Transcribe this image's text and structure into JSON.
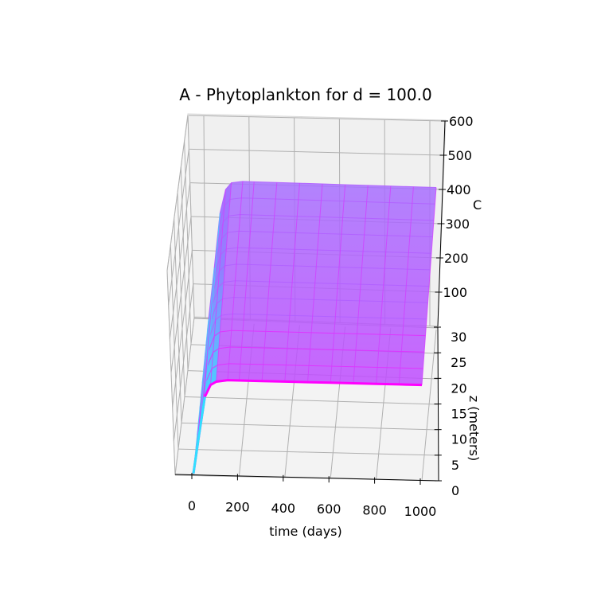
{
  "chart_data": {
    "type": "surface",
    "title": "A - Phytoplankton for d = 100.0",
    "xlabel": "time (days)",
    "ylabel": "z (meters)",
    "zlabel": "C",
    "x_ticks": [
      "0",
      "200",
      "400",
      "600",
      "800",
      "1000"
    ],
    "y_ticks": [
      "0",
      "5",
      "10",
      "15",
      "20",
      "25",
      "30"
    ],
    "z_ticks": [
      "100",
      "200",
      "300",
      "400",
      "500",
      "600"
    ],
    "xlim": [
      0,
      1000
    ],
    "ylim": [
      0,
      30
    ],
    "zlim": [
      0,
      600
    ],
    "grid": true,
    "colormap": "cool",
    "colormap_colors": [
      "#00ffff",
      "#ff00ff"
    ],
    "surface": {
      "description_free_values": true,
      "time": [
        0,
        25,
        50,
        75,
        100,
        150,
        200,
        300,
        400,
        500,
        600,
        700,
        800,
        900,
        1000
      ],
      "z_top": 30,
      "C_at_z_top": [
        10,
        160,
        320,
        390,
        410,
        415,
        415,
        415,
        415,
        415,
        415,
        415,
        415,
        415,
        415
      ],
      "z_bottom": 0,
      "C_at_z_bottom": [
        5,
        120,
        230,
        265,
        275,
        280,
        280,
        280,
        280,
        280,
        280,
        280,
        280,
        280,
        280
      ]
    },
    "colors": {
      "pane_back": "#f0f0f0",
      "pane_floor": "#f2f2f2",
      "pane_side": "#fafafa",
      "grid": "#b0b0b0",
      "axis": "#000000"
    }
  }
}
